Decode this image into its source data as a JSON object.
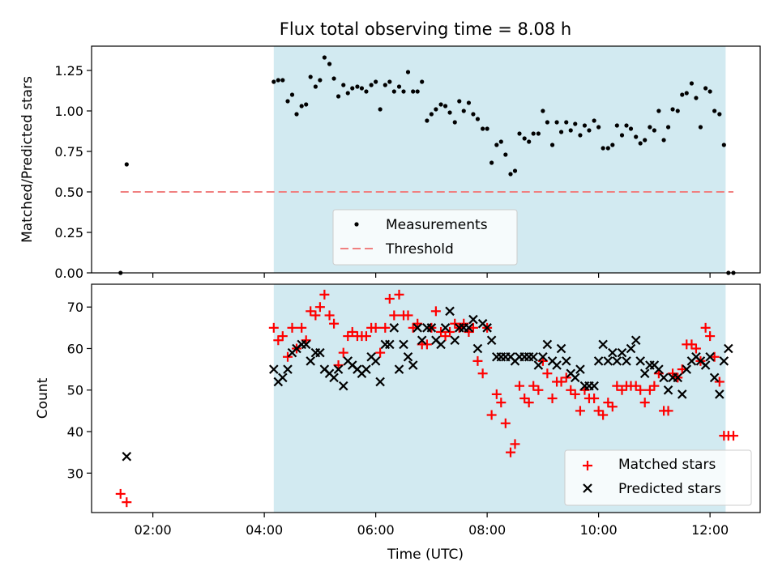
{
  "chart_data": [
    {
      "type": "scatter",
      "title": "Flux total observing time = 8.08 h",
      "xlabel": "",
      "ylabel": "Matched/Predicted stars",
      "ylim": [
        0,
        1.4
      ],
      "yticks": [
        "0.00",
        "0.25",
        "0.50",
        "0.75",
        "1.00",
        "1.25"
      ],
      "shaded_range_hours": [
        4.17,
        12.28
      ],
      "shade_color": "#add8e6",
      "legend_position": "lower-center",
      "series": [
        {
          "name": "Measurements",
          "marker": "dot",
          "color": "#000000",
          "x": [
            1.42,
            1.53,
            4.17,
            4.25,
            4.33,
            4.42,
            4.5,
            4.58,
            4.67,
            4.75,
            4.83,
            4.92,
            5.0,
            5.08,
            5.17,
            5.25,
            5.33,
            5.42,
            5.5,
            5.58,
            5.67,
            5.75,
            5.83,
            5.92,
            6.0,
            6.08,
            6.17,
            6.25,
            6.33,
            6.42,
            6.5,
            6.58,
            6.67,
            6.75,
            6.83,
            6.92,
            7.0,
            7.08,
            7.17,
            7.25,
            7.33,
            7.42,
            7.5,
            7.58,
            7.67,
            7.75,
            7.83,
            7.92,
            8.0,
            8.08,
            8.17,
            8.25,
            8.33,
            8.42,
            8.5,
            8.58,
            8.67,
            8.75,
            8.83,
            8.92,
            9.0,
            9.08,
            9.17,
            9.25,
            9.33,
            9.42,
            9.5,
            9.58,
            9.67,
            9.75,
            9.83,
            9.92,
            10.0,
            10.08,
            10.17,
            10.25,
            10.33,
            10.42,
            10.5,
            10.58,
            10.67,
            10.75,
            10.83,
            10.92,
            11.0,
            11.08,
            11.17,
            11.25,
            11.33,
            11.42,
            11.5,
            11.58,
            11.67,
            11.75,
            11.83,
            11.92,
            12.0,
            12.08,
            12.17,
            12.25,
            12.33,
            12.42
          ],
          "y": [
            0.0,
            0.67,
            1.18,
            1.19,
            1.19,
            1.06,
            1.1,
            0.98,
            1.03,
            1.04,
            1.21,
            1.15,
            1.19,
            1.33,
            1.29,
            1.2,
            1.09,
            1.16,
            1.11,
            1.14,
            1.15,
            1.14,
            1.12,
            1.16,
            1.18,
            1.01,
            1.16,
            1.18,
            1.12,
            1.15,
            1.12,
            1.24,
            1.12,
            1.12,
            1.18,
            0.94,
            0.98,
            1.01,
            1.04,
            1.03,
            0.99,
            0.93,
            1.06,
            1.0,
            1.05,
            0.98,
            0.95,
            0.89,
            0.89,
            0.68,
            0.79,
            0.81,
            0.73,
            0.61,
            0.63,
            0.86,
            0.83,
            0.81,
            0.86,
            0.86,
            1.0,
            0.93,
            0.79,
            0.93,
            0.87,
            0.93,
            0.88,
            0.92,
            0.85,
            0.91,
            0.88,
            0.94,
            0.9,
            0.77,
            0.77,
            0.79,
            0.91,
            0.85,
            0.91,
            0.89,
            0.84,
            0.8,
            0.82,
            0.9,
            0.88,
            1.0,
            0.82,
            0.9,
            1.01,
            1.0,
            1.1,
            1.11,
            1.17,
            1.08,
            0.9,
            1.14,
            1.12,
            1.0,
            0.98,
            0.79,
            0.0,
            0.0
          ]
        },
        {
          "name": "Threshold",
          "marker": "dashed-line",
          "color": "#f08080",
          "x": [
            1.42,
            12.42
          ],
          "y": [
            0.5,
            0.5
          ]
        }
      ]
    },
    {
      "type": "scatter",
      "title": "",
      "xlabel": "Time (UTC)",
      "ylabel": "Count",
      "xlim_hours": [
        0.9,
        12.9
      ],
      "ylim": [
        20.5,
        75.5
      ],
      "xticks": [
        {
          "hour": 2,
          "label": "02:00"
        },
        {
          "hour": 4,
          "label": "04:00"
        },
        {
          "hour": 6,
          "label": "06:00"
        },
        {
          "hour": 8,
          "label": "08:00"
        },
        {
          "hour": 10,
          "label": "10:00"
        },
        {
          "hour": 12,
          "label": "12:00"
        }
      ],
      "yticks": [
        "30",
        "40",
        "50",
        "60",
        "70"
      ],
      "shaded_range_hours": [
        4.17,
        12.28
      ],
      "shade_color": "#add8e6",
      "legend_position": "lower-right",
      "series": [
        {
          "name": "Matched stars",
          "marker": "plus",
          "color": "#ff0000",
          "x": [
            1.42,
            1.53,
            4.17,
            4.25,
            4.33,
            4.42,
            4.5,
            4.58,
            4.67,
            4.75,
            4.83,
            4.92,
            5.0,
            5.08,
            5.17,
            5.25,
            5.33,
            5.42,
            5.5,
            5.58,
            5.67,
            5.75,
            5.83,
            5.92,
            6.0,
            6.08,
            6.17,
            6.25,
            6.33,
            6.42,
            6.5,
            6.58,
            6.67,
            6.75,
            6.83,
            6.92,
            7.0,
            7.08,
            7.17,
            7.25,
            7.33,
            7.42,
            7.5,
            7.58,
            7.67,
            7.75,
            7.83,
            7.92,
            8.0,
            8.08,
            8.17,
            8.25,
            8.33,
            8.42,
            8.5,
            8.58,
            8.67,
            8.75,
            8.83,
            8.92,
            9.0,
            9.08,
            9.17,
            9.25,
            9.33,
            9.42,
            9.5,
            9.58,
            9.67,
            9.75,
            9.83,
            9.92,
            10.0,
            10.08,
            10.17,
            10.25,
            10.33,
            10.42,
            10.5,
            10.58,
            10.67,
            10.75,
            10.83,
            10.92,
            11.0,
            11.08,
            11.17,
            11.25,
            11.33,
            11.42,
            11.5,
            11.58,
            11.67,
            11.75,
            11.83,
            11.92,
            12.0,
            12.08,
            12.17,
            12.25,
            12.33,
            12.42
          ],
          "y": [
            25,
            23,
            65,
            62,
            63,
            58,
            65,
            60,
            65,
            62,
            69,
            68,
            70,
            73,
            68,
            66,
            56,
            59,
            63,
            64,
            63,
            63,
            63,
            65,
            65,
            59,
            65,
            72,
            68,
            73,
            68,
            68,
            65,
            66,
            61,
            61,
            65,
            69,
            64,
            63,
            64,
            66,
            65,
            66,
            64,
            65,
            57,
            54,
            65,
            44,
            49,
            47,
            42,
            35,
            37,
            51,
            48,
            47,
            51,
            50,
            57,
            54,
            48,
            52,
            52,
            53,
            50,
            49,
            45,
            50,
            48,
            48,
            45,
            44,
            47,
            46,
            51,
            50,
            51,
            51,
            51,
            50,
            47,
            50,
            51,
            54,
            45,
            45,
            54,
            53,
            55,
            61,
            61,
            60,
            57,
            65,
            63,
            58,
            52,
            39,
            39,
            39
          ]
        },
        {
          "name": "Predicted stars",
          "marker": "cross",
          "color": "#000000",
          "x": [
            1.53,
            4.17,
            4.25,
            4.33,
            4.42,
            4.5,
            4.58,
            4.67,
            4.75,
            4.83,
            4.92,
            5.0,
            5.08,
            5.17,
            5.25,
            5.33,
            5.42,
            5.5,
            5.58,
            5.67,
            5.75,
            5.83,
            5.92,
            6.0,
            6.08,
            6.17,
            6.25,
            6.33,
            6.42,
            6.5,
            6.58,
            6.67,
            6.75,
            6.83,
            6.92,
            7.0,
            7.08,
            7.17,
            7.25,
            7.33,
            7.42,
            7.5,
            7.58,
            7.67,
            7.75,
            7.83,
            7.92,
            8.0,
            8.08,
            8.17,
            8.25,
            8.33,
            8.42,
            8.5,
            8.58,
            8.67,
            8.75,
            8.83,
            8.92,
            9.0,
            9.08,
            9.17,
            9.25,
            9.33,
            9.42,
            9.5,
            9.58,
            9.67,
            9.75,
            9.83,
            9.92,
            10.0,
            10.08,
            10.17,
            10.25,
            10.33,
            10.42,
            10.5,
            10.58,
            10.67,
            10.75,
            10.83,
            10.92,
            11.0,
            11.08,
            11.17,
            11.25,
            11.33,
            11.42,
            11.5,
            11.58,
            11.67,
            11.75,
            11.83,
            11.92,
            12.0,
            12.08,
            12.17,
            12.25,
            12.33
          ],
          "y": [
            34,
            55,
            52,
            53,
            55,
            59,
            60,
            61,
            61,
            57,
            59,
            59,
            55,
            54,
            53,
            55,
            51,
            57,
            56,
            55,
            54,
            55,
            58,
            57,
            52,
            61,
            61,
            65,
            55,
            61,
            58,
            56,
            65,
            62,
            65,
            65,
            62,
            61,
            65,
            69,
            62,
            65,
            65,
            65,
            67,
            60,
            66,
            65,
            62,
            58,
            58,
            58,
            58,
            57,
            58,
            58,
            58,
            58,
            56,
            58,
            61,
            57,
            56,
            60,
            57,
            54,
            53,
            55,
            51,
            51,
            51,
            57,
            61,
            57,
            59,
            57,
            59,
            57,
            60,
            62,
            57,
            54,
            56,
            56,
            55,
            53,
            50,
            53,
            53,
            49,
            55,
            57,
            58,
            57,
            56,
            58,
            53,
            49,
            57,
            60
          ]
        }
      ]
    }
  ]
}
